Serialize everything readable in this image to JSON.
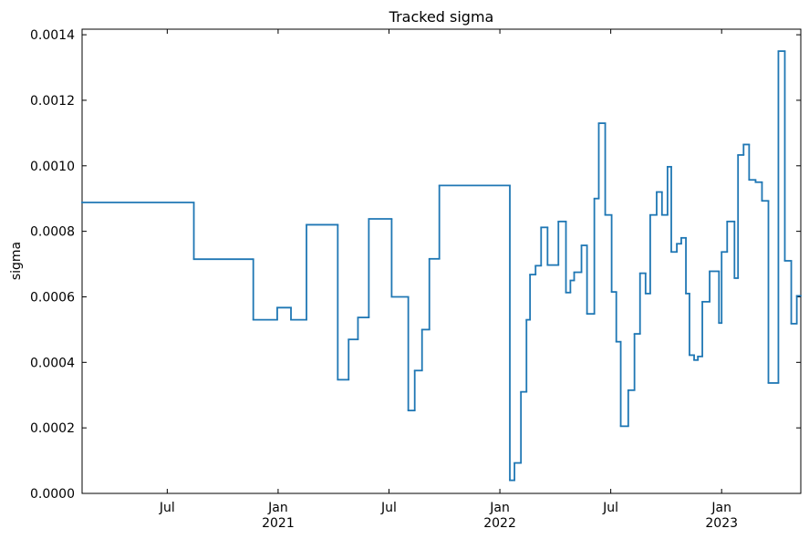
{
  "chart_data": {
    "type": "step",
    "title": "Tracked sigma",
    "y_label": "sigma",
    "color": "#1f77b4",
    "x": [
      2020.116,
      2020.62,
      2020.888,
      2020.996,
      2021.058,
      2021.128,
      2021.269,
      2021.318,
      2021.36,
      2021.409,
      2021.512,
      2021.587,
      2021.616,
      2021.649,
      2021.682,
      2021.727,
      2022.045,
      2022.066,
      2022.095,
      2022.12,
      2022.136,
      2022.161,
      2022.186,
      2022.215,
      2022.264,
      2022.298,
      2022.318,
      2022.335,
      2022.368,
      2022.393,
      2022.426,
      2022.446,
      2022.475,
      2022.504,
      2022.525,
      2022.545,
      2022.579,
      2022.607,
      2022.632,
      2022.657,
      2022.678,
      2022.707,
      2022.731,
      2022.756,
      2022.773,
      2022.798,
      2022.818,
      2022.839,
      2022.855,
      2022.876,
      2022.893,
      2022.913,
      2022.946,
      2022.988,
      2023.0,
      2023.025,
      2023.058,
      2023.074,
      2023.099,
      2023.124,
      2023.153,
      2023.182,
      2023.211,
      2023.256,
      2023.285,
      2023.314,
      2023.339
    ],
    "values": [
      0.000888,
      0.000715,
      0.00053,
      0.000567,
      0.00053,
      0.00082,
      0.000347,
      0.00047,
      0.000537,
      0.000838,
      0.0006,
      0.000253,
      0.000375,
      0.0005,
      0.000716,
      0.00094,
      4e-05,
      9.3e-05,
      0.00031,
      0.00053,
      0.000668,
      0.000695,
      0.000812,
      0.000697,
      0.00083,
      0.000613,
      0.00065,
      0.000675,
      0.000757,
      0.000548,
      0.0009,
      0.00113,
      0.00085,
      0.000615,
      0.000463,
      0.000205,
      0.000315,
      0.000487,
      0.000672,
      0.00061,
      0.00085,
      0.00092,
      0.00085,
      0.000997,
      0.000737,
      0.000762,
      0.00078,
      0.00061,
      0.000422,
      0.000407,
      0.000418,
      0.000585,
      0.000678,
      0.00052,
      0.000737,
      0.00083,
      0.000657,
      0.001033,
      0.001065,
      0.000957,
      0.00095,
      0.000893,
      0.000337,
      0.00135,
      0.00071,
      0.000518,
      0.000603
    ],
    "xlim": [
      2020.116,
      2023.357
    ],
    "xticks": [
      {
        "value": 2020.5,
        "label": "Jul"
      },
      {
        "value": 2021,
        "label": "Jan\n2021"
      },
      {
        "value": 2021.5,
        "label": "Jul"
      },
      {
        "value": 2022,
        "label": "Jan\n2022"
      },
      {
        "value": 2022.5,
        "label": "Jul"
      },
      {
        "value": 2023,
        "label": "Jan\n2023"
      }
    ],
    "ylim": [
      0,
      0.001417
    ],
    "yticks": [
      {
        "value": 0,
        "label": "0.0000"
      },
      {
        "value": 0.0002,
        "label": "0.0002"
      },
      {
        "value": 0.0004,
        "label": "0.0004"
      },
      {
        "value": 0.0006,
        "label": "0.0006"
      },
      {
        "value": 0.0008,
        "label": "0.0008"
      },
      {
        "value": 0.001,
        "label": "0.0010"
      },
      {
        "value": 0.0012,
        "label": "0.0012"
      },
      {
        "value": 0.0014,
        "label": "0.0014"
      }
    ]
  }
}
